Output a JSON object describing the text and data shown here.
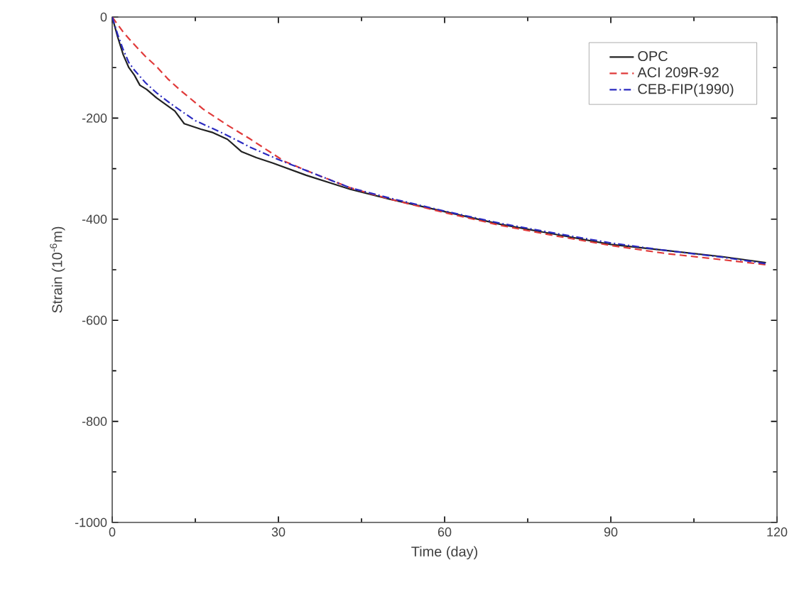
{
  "chart_data": {
    "type": "line",
    "xlabel": "Time (day)",
    "ylabel": "Strain (10$^{-6}$m)",
    "xlim": [
      0,
      120
    ],
    "xticks": [
      0,
      30,
      60,
      90,
      120
    ],
    "ylim": [
      -1000,
      0
    ],
    "yticks": [
      -1000,
      -800,
      -600,
      -400,
      -200,
      0
    ],
    "grid": false,
    "legend": "top right",
    "series": [
      {
        "name": "OPC",
        "color": "#222222",
        "line_style": "solid",
        "x": [
          0,
          1,
          2,
          3,
          4,
          5,
          6.2,
          8,
          11.3,
          13,
          16,
          18,
          20.8,
          23.3,
          26,
          29,
          35,
          43,
          50,
          60,
          70,
          80,
          90,
          100,
          110,
          118
        ],
        "values": [
          0,
          -40,
          -75,
          -100,
          -115,
          -135,
          -143,
          -160,
          -186,
          -211,
          -222,
          -228,
          -242,
          -266,
          -278,
          -289,
          -313,
          -341,
          -360,
          -385,
          -410,
          -430,
          -450,
          -462,
          -474,
          -486
        ]
      },
      {
        "name": "ACI 209R-92",
        "color": "#e03a3a",
        "line_style": "dashed",
        "x": [
          0,
          1,
          2,
          3.6,
          6,
          8,
          10,
          12.2,
          16.4,
          20.8,
          25,
          31,
          36,
          43,
          50,
          60,
          70,
          80,
          90,
          100,
          110,
          118
        ],
        "values": [
          0,
          -15,
          -30,
          -50,
          -78,
          -98,
          -122,
          -144,
          -182,
          -214,
          -242,
          -285,
          -308,
          -338,
          -360,
          -387,
          -412,
          -433,
          -452,
          -468,
          -480,
          -490
        ]
      },
      {
        "name": "CEB-FIP(1990)",
        "color": "#2a2ac0",
        "line_style": "dashdot",
        "x": [
          0,
          1,
          2,
          3,
          4,
          6,
          8,
          11,
          15,
          20,
          25,
          30,
          36,
          43,
          50,
          60,
          70,
          80,
          90,
          100,
          110,
          118
        ],
        "values": [
          0,
          -35,
          -65,
          -90,
          -105,
          -130,
          -150,
          -175,
          -205,
          -230,
          -258,
          -282,
          -308,
          -338,
          -358,
          -384,
          -408,
          -428,
          -447,
          -462,
          -475,
          -488
        ]
      }
    ]
  }
}
